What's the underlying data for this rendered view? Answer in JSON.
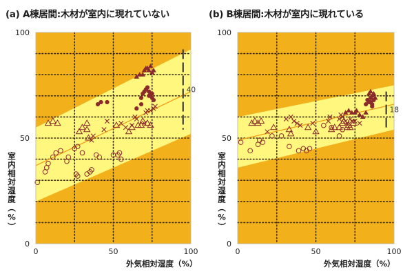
{
  "chart_data": [
    {
      "type": "scatter",
      "title": "(a) A棟居間:木材が室内に現れていない",
      "xlabel": "外気相対湿度（%）",
      "ylabel": "室内相対湿度（%）",
      "xlim": [
        0,
        100
      ],
      "ylim": [
        0,
        100
      ],
      "x_ticks": [
        "0",
        "50",
        "100"
      ],
      "y_ticks": [
        "0",
        "50",
        "100"
      ],
      "grid": "dotted, x every 25, y every 10",
      "band": {
        "lower_at_0": 20,
        "upper_at_0": 55,
        "lower_at_100": 52,
        "upper_at_100": 92
      },
      "trend_line": {
        "y_at_0": 37,
        "y_at_100": 72
      },
      "annotation": {
        "label": "40",
        "x": 95,
        "y_from": 54,
        "y_to": 92
      },
      "series": [
        {
          "marker": "triangle-open",
          "points": [
            [
              8,
              57
            ],
            [
              11,
              58
            ],
            [
              14,
              57
            ],
            [
              28,
              53
            ],
            [
              30,
              55
            ],
            [
              33,
              57
            ],
            [
              33,
              54
            ],
            [
              34,
              50
            ],
            [
              52,
              56
            ],
            [
              60,
              53
            ],
            [
              62,
              55
            ],
            [
              66,
              56
            ],
            [
              68,
              56
            ],
            [
              69,
              58
            ],
            [
              72,
              57
            ],
            [
              74,
              56
            ]
          ]
        },
        {
          "marker": "x",
          "points": [
            [
              36,
              49
            ],
            [
              37,
              51
            ],
            [
              44,
              54
            ],
            [
              46,
              58
            ],
            [
              55,
              57
            ],
            [
              58,
              55
            ],
            [
              62,
              56
            ],
            [
              64,
              60
            ],
            [
              65,
              59
            ],
            [
              70,
              57
            ],
            [
              71,
              62
            ],
            [
              72,
              63
            ],
            [
              74,
              63
            ],
            [
              76,
              64
            ],
            [
              77,
              65
            ]
          ]
        },
        {
          "marker": "circle-open",
          "points": [
            [
              1,
              29
            ],
            [
              6,
              34
            ],
            [
              7,
              36
            ],
            [
              8,
              38
            ],
            [
              11,
              41
            ],
            [
              13,
              43
            ],
            [
              16,
              44
            ],
            [
              20,
              39
            ],
            [
              21,
              41
            ],
            [
              25,
              45
            ],
            [
              27,
              46
            ],
            [
              30,
              43
            ],
            [
              26,
              33
            ],
            [
              27,
              32
            ],
            [
              33,
              33
            ],
            [
              35,
              34
            ],
            [
              36,
              35
            ],
            [
              39,
              42
            ],
            [
              41,
              41
            ],
            [
              50,
              42
            ],
            [
              53,
              42
            ],
            [
              54,
              43
            ],
            [
              55,
              40
            ]
          ]
        },
        {
          "marker": "circle-filled",
          "points": [
            [
              40,
              66
            ],
            [
              42,
              67
            ],
            [
              46,
              67
            ],
            [
              65,
              64
            ],
            [
              68,
              66
            ],
            [
              68,
              69
            ],
            [
              69,
              71
            ],
            [
              70,
              72
            ],
            [
              71,
              73
            ],
            [
              72,
              74
            ],
            [
              73,
              72
            ],
            [
              74,
              71
            ],
            [
              75,
              71
            ],
            [
              73,
              70
            ],
            [
              75,
              69
            ],
            [
              76,
              68
            ]
          ]
        },
        {
          "marker": "triangle-filled",
          "points": [
            [
              65,
              79
            ],
            [
              67,
              80
            ],
            [
              69,
              80
            ],
            [
              70,
              82
            ],
            [
              71,
              83
            ],
            [
              72,
              83
            ],
            [
              73,
              82
            ],
            [
              74,
              84
            ],
            [
              75,
              81
            ],
            [
              76,
              82
            ]
          ]
        }
      ]
    },
    {
      "type": "scatter",
      "title": "(b) B棟居間:木材が室内に現れている",
      "xlabel": "外気相対湿度（%）",
      "ylabel": "室内相対湿度（%）",
      "xlim": [
        0,
        100
      ],
      "ylim": [
        0,
        100
      ],
      "x_ticks": [
        "0",
        "50",
        "100"
      ],
      "y_ticks": [
        "0",
        "50",
        "100"
      ],
      "grid": "dotted, x every 25, y every 10",
      "band": {
        "lower_at_0": 36,
        "upper_at_0": 60,
        "lower_at_100": 54,
        "upper_at_100": 75
      },
      "trend_line": {
        "y_at_0": 49,
        "y_at_100": 66
      },
      "annotation": {
        "label": "18",
        "x": 95,
        "y_from": 55,
        "y_to": 72
      },
      "series": [
        {
          "marker": "triangle-open",
          "points": [
            [
              9,
              57
            ],
            [
              11,
              58
            ],
            [
              13,
              57
            ],
            [
              15,
              58
            ],
            [
              23,
              55
            ],
            [
              33,
              54
            ],
            [
              34,
              52
            ],
            [
              45,
              55
            ],
            [
              50,
              53
            ],
            [
              60,
              54
            ],
            [
              62,
              55
            ],
            [
              65,
              55
            ],
            [
              67,
              57
            ],
            [
              68,
              58
            ],
            [
              70,
              55
            ],
            [
              71,
              56
            ],
            [
              72,
              55
            ],
            [
              74,
              57
            ]
          ]
        },
        {
          "marker": "x",
          "points": [
            [
              19,
              53
            ],
            [
              31,
              59
            ],
            [
              34,
              60
            ],
            [
              36,
              58
            ],
            [
              38,
              57
            ],
            [
              40,
              56
            ],
            [
              48,
              57
            ],
            [
              58,
              58
            ],
            [
              59,
              60
            ],
            [
              65,
              59
            ],
            [
              66,
              61
            ],
            [
              67,
              60
            ],
            [
              69,
              58
            ],
            [
              70,
              57
            ],
            [
              72,
              59
            ],
            [
              73,
              58
            ],
            [
              75,
              58
            ],
            [
              78,
              57
            ]
          ]
        },
        {
          "marker": "circle-open",
          "points": [
            [
              2,
              48
            ],
            [
              8,
              44
            ],
            [
              13,
              47
            ],
            [
              14,
              49
            ],
            [
              16,
              48
            ],
            [
              22,
              51
            ],
            [
              28,
              51
            ],
            [
              33,
              46
            ],
            [
              39,
              44
            ],
            [
              42,
              45
            ],
            [
              44,
              44
            ],
            [
              46,
              45
            ],
            [
              55,
              56
            ],
            [
              60,
              55
            ],
            [
              65,
              51
            ],
            [
              67,
              54
            ]
          ]
        },
        {
          "marker": "circle-filled",
          "points": [
            [
              82,
              66
            ],
            [
              83,
              68
            ],
            [
              84,
              67
            ],
            [
              85,
              67
            ],
            [
              86,
              66
            ],
            [
              87,
              68
            ],
            [
              86,
              65
            ],
            [
              85,
              69
            ]
          ]
        },
        {
          "marker": "triangle-filled",
          "points": [
            [
              69,
              62
            ],
            [
              71,
              63
            ],
            [
              73,
              62
            ],
            [
              75,
              62
            ],
            [
              76,
              63
            ],
            [
              78,
              61
            ],
            [
              80,
              60
            ],
            [
              82,
              62
            ],
            [
              84,
              71
            ],
            [
              85,
              72
            ],
            [
              86,
              70
            ],
            [
              87,
              71
            ],
            [
              88,
              69
            ]
          ]
        }
      ]
    }
  ],
  "colors": {
    "background_orange": "#F2B11B",
    "band_yellow": "#FFF77E",
    "trend_line": "#F0A019",
    "marker": "#8B2A2A",
    "grid": "#3A2A10",
    "annotation": "#3C3C3C"
  }
}
